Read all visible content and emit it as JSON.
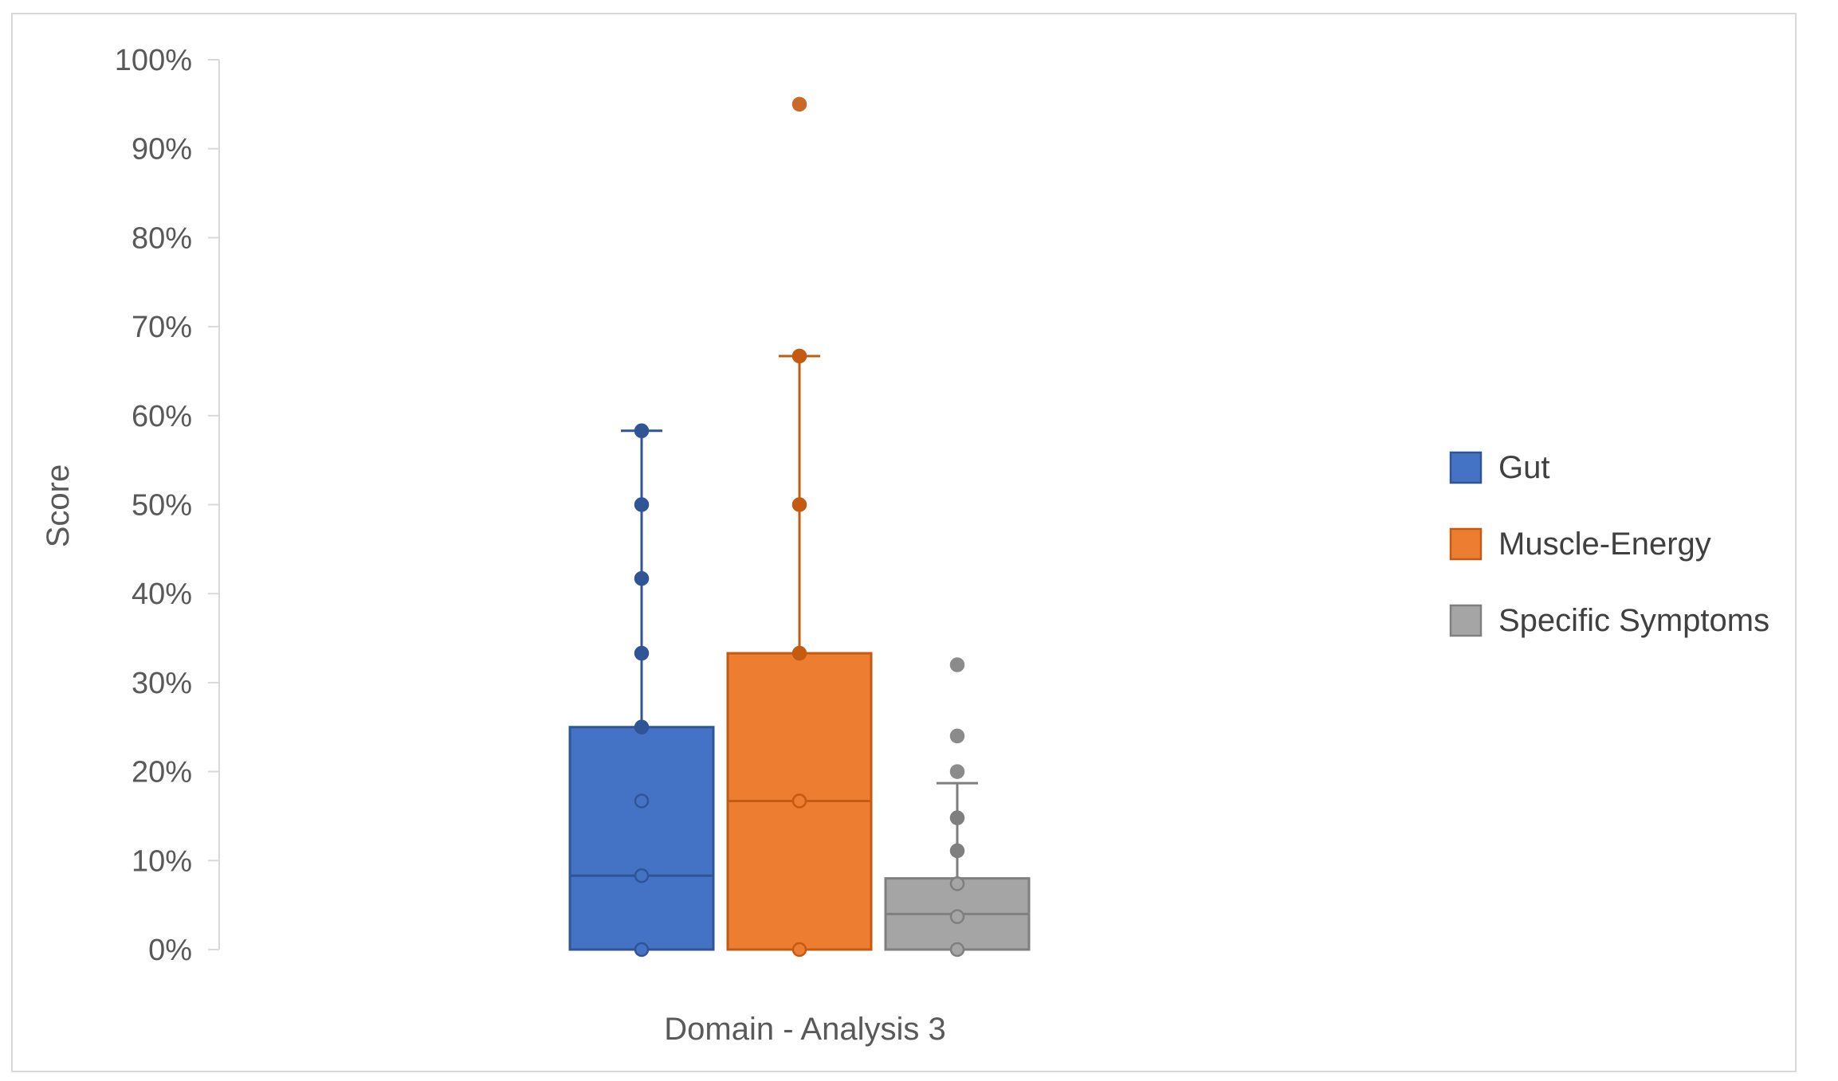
{
  "chart_data": {
    "type": "boxplot",
    "title": "",
    "xlabel": "Domain - Analysis 3",
    "ylabel": "Score",
    "ylim": [
      0,
      1
    ],
    "yticks": [
      0,
      0.1,
      0.2,
      0.3,
      0.4,
      0.5,
      0.6,
      0.7,
      0.8,
      0.9,
      1.0
    ],
    "ytick_labels": [
      "0%",
      "10%",
      "20%",
      "30%",
      "40%",
      "50%",
      "60%",
      "70%",
      "80%",
      "90%",
      "100%"
    ],
    "grid": false,
    "legend_position": "right",
    "series": [
      {
        "name": "Gut",
        "color": "#4472C4",
        "edge_color": "#2F5597",
        "q1": 0,
        "median": 0.083,
        "q3": 0.25,
        "whisker_low": 0,
        "whisker_high": 0.583,
        "points": [
          0,
          0.083,
          0.167,
          0.25,
          0.333,
          0.417,
          0.5,
          0.583
        ],
        "outliers": []
      },
      {
        "name": "Muscle-Energy",
        "color": "#ED7D31",
        "edge_color": "#C55A11",
        "q1": 0,
        "median": 0.167,
        "q3": 0.333,
        "whisker_low": 0,
        "whisker_high": 0.667,
        "points": [
          0,
          0.167,
          0.333,
          0.5,
          0.667
        ],
        "outliers": [
          0.95
        ]
      },
      {
        "name": "Specific Symptoms",
        "color": "#A5A5A5",
        "edge_color": "#7F7F7F",
        "q1": 0,
        "median": 0.04,
        "q3": 0.08,
        "whisker_low": 0,
        "whisker_high": 0.187,
        "points": [
          0,
          0.037,
          0.074,
          0.111,
          0.148
        ],
        "outliers": [
          0.2,
          0.24,
          0.32
        ]
      }
    ]
  }
}
